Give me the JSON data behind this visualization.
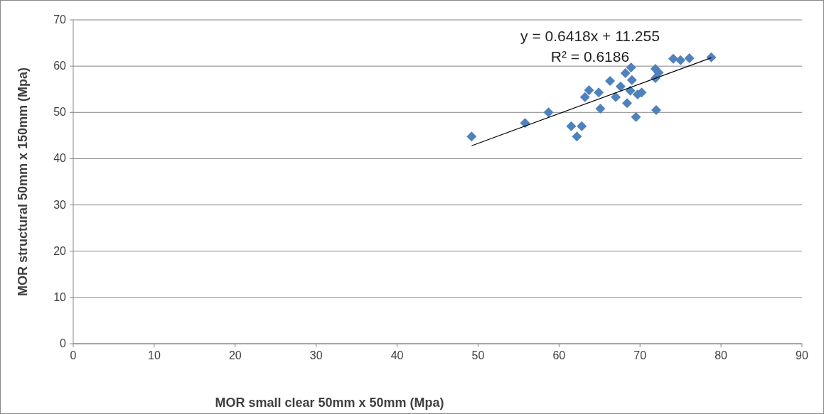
{
  "chart_data": {
    "type": "scatter",
    "xlabel": "MOR small clear 50mm x 50mm (Mpa)",
    "ylabel": "MOR structural 50mm x 150mm  (Mpa)",
    "xlim": [
      0,
      90
    ],
    "xticks": [
      0,
      10,
      20,
      30,
      40,
      50,
      60,
      70,
      80,
      90
    ],
    "ylim": [
      0,
      70
    ],
    "yticks": [
      0,
      10,
      20,
      30,
      40,
      50,
      60,
      70
    ],
    "grid": "y",
    "annotations": [
      "y = 0.6418x + 11.255",
      "R² = 0.6186"
    ],
    "series": [
      {
        "color": "#4f81bd",
        "marker": "diamond",
        "x": [
          49.2,
          55.8,
          58.7,
          61.5,
          62.8,
          62.2,
          63.2,
          63.7,
          64.9,
          66.3,
          65.1,
          67.0,
          67.6,
          68.4,
          68.2,
          68.9,
          69.0,
          68.8,
          69.7,
          70.2,
          69.5,
          72.0,
          71.9,
          71.9,
          72.3,
          74.1,
          75.0,
          76.1,
          78.8
        ],
        "values": [
          44.8,
          47.7,
          50.0,
          47.0,
          47.0,
          44.8,
          53.3,
          54.8,
          54.3,
          56.8,
          50.8,
          53.3,
          55.6,
          52.0,
          58.5,
          59.7,
          57.0,
          54.7,
          53.9,
          54.3,
          49.0,
          50.5,
          59.4,
          57.4,
          58.6,
          61.6,
          61.3,
          61.7,
          61.9
        ]
      },
      {
        "type": "line",
        "color": "#000000",
        "marker": "none",
        "x": [
          49.2,
          78.8
        ],
        "values": [
          42.8,
          61.8
        ]
      }
    ]
  }
}
